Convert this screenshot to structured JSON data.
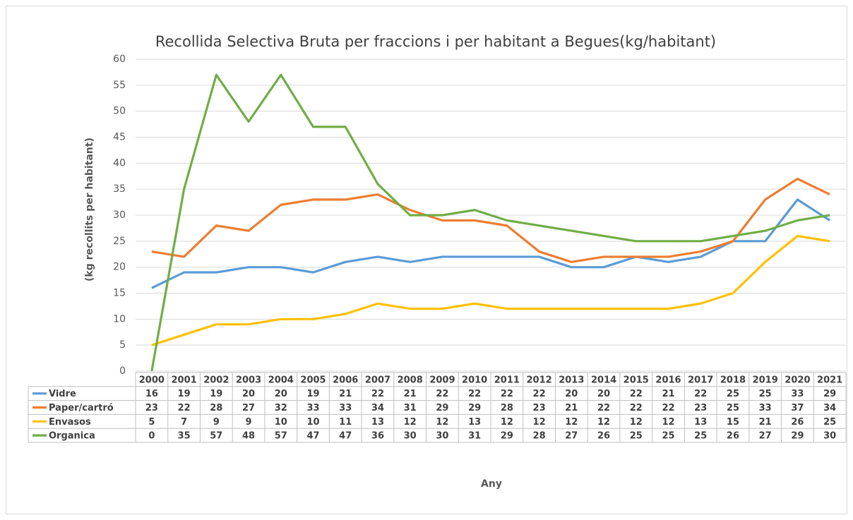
{
  "chart_data": {
    "type": "line",
    "title": "Recollida Selectiva Bruta per fraccions i per habitant a Begues(kg/habitant)",
    "y_label": "(kg recollits  per habitant)",
    "x_label": "Any",
    "categories": [
      "2000",
      "2001",
      "2002",
      "2003",
      "2004",
      "2005",
      "2006",
      "2007",
      "2008",
      "2009",
      "2010",
      "2011",
      "2012",
      "2013",
      "2014",
      "2015",
      "2016",
      "2017",
      "2018",
      "2019",
      "2020",
      "2021"
    ],
    "series": [
      {
        "name": "Vidre",
        "color": "#5b9bd5",
        "values": [
          16,
          19,
          19,
          20,
          20,
          19,
          21,
          22,
          21,
          22,
          22,
          22,
          22,
          20,
          20,
          22,
          21,
          22,
          25,
          25,
          33,
          29
        ]
      },
      {
        "name": "Paper/cartró",
        "color": "#ed7d31",
        "values": [
          23,
          22,
          28,
          27,
          32,
          33,
          33,
          34,
          31,
          29,
          29,
          28,
          23,
          21,
          22,
          22,
          22,
          23,
          25,
          33,
          37,
          34
        ]
      },
      {
        "name": "Envasos",
        "color": "#ffc000",
        "values": [
          5,
          7,
          9,
          9,
          10,
          10,
          11,
          13,
          12,
          12,
          13,
          12,
          12,
          12,
          12,
          12,
          12,
          13,
          15,
          21,
          26,
          25
        ]
      },
      {
        "name": "Organica",
        "color": "#70ad47",
        "values": [
          0,
          35,
          57,
          48,
          57,
          47,
          47,
          36,
          30,
          30,
          31,
          29,
          28,
          27,
          26,
          25,
          25,
          25,
          26,
          27,
          29,
          30
        ]
      }
    ],
    "ylim": [
      0,
      60
    ],
    "yticks": [
      0,
      5,
      10,
      15,
      20,
      25,
      30,
      35,
      40,
      45,
      50,
      55,
      60
    ],
    "grid": true
  }
}
